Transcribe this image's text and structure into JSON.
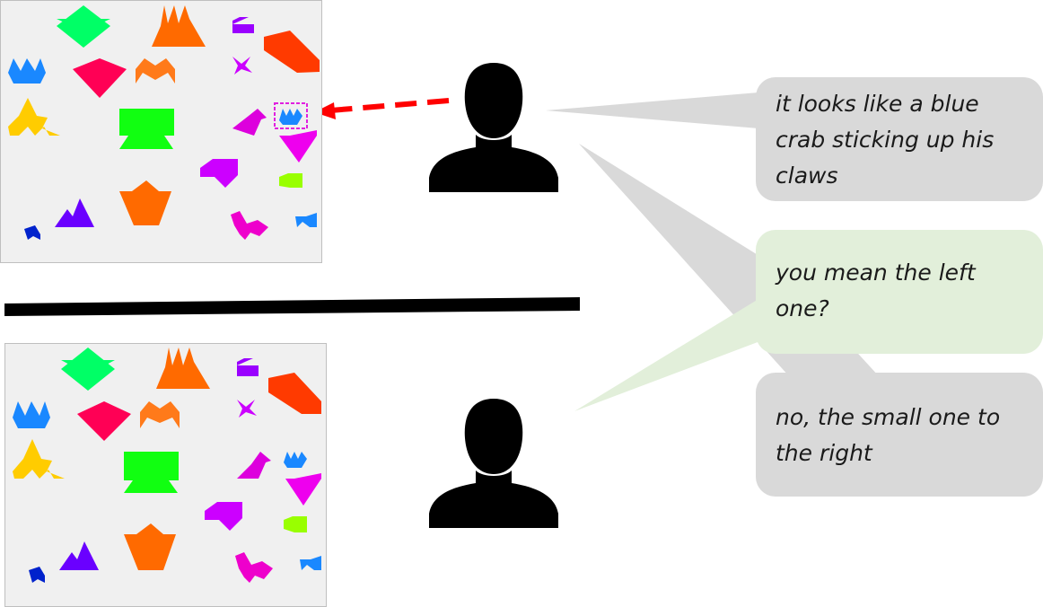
{
  "bubbles": {
    "speaker_a": "it looks like a blue crab sticking up his claws",
    "speaker_b": "you mean the left one?",
    "speaker_a_reply": "no, the small one to the right"
  },
  "colors": {
    "board_background": "#f0f0f0",
    "bubble_grey": "#d9d9d9",
    "bubble_green": "#e2efda",
    "pointer_arrow": "#ff0000",
    "target_box": "#e020e0",
    "person": "#000000"
  },
  "icons": [
    "person-icon",
    "tangram-shape",
    "dashed-arrow",
    "target-highlight-box"
  ]
}
